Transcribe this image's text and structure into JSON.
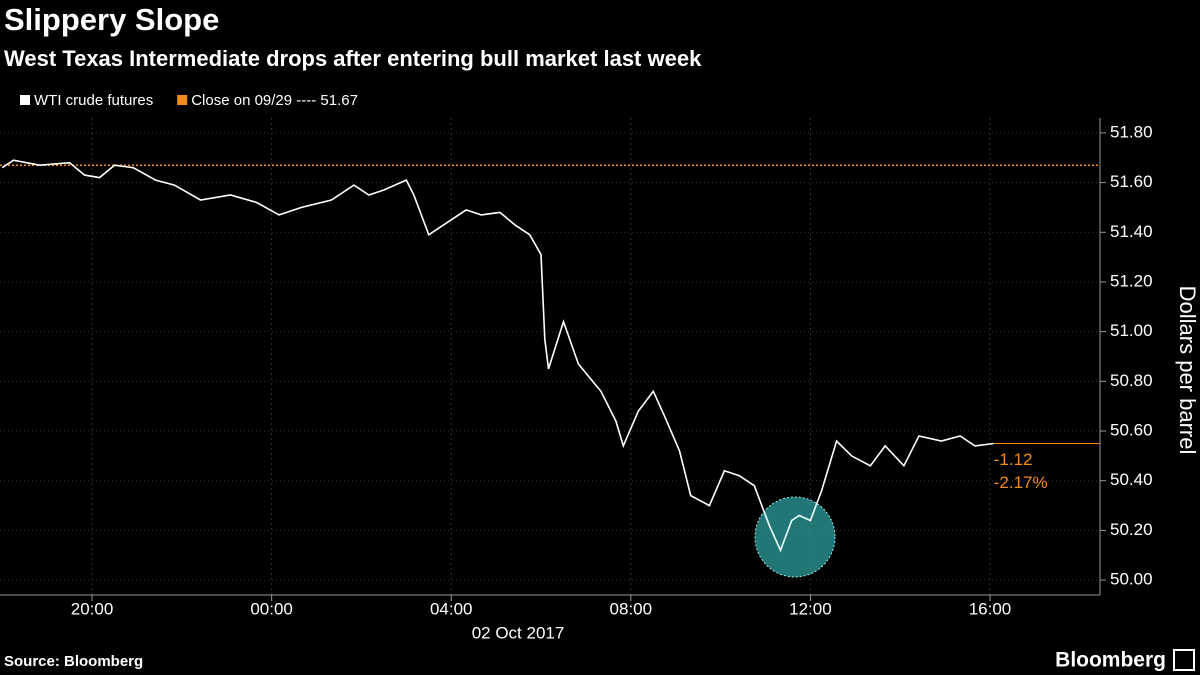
{
  "chart_data": {
    "type": "line",
    "title": "Slippery Slope",
    "subtitle": "West Texas Intermediate drops after entering bull market last week",
    "y_label": "Dollars per barrel",
    "x_label": "02 Oct 2017",
    "source": "Source: Bloomberg",
    "brand": "Bloomberg",
    "series": [
      {
        "name": "WTI crude futures",
        "color": "#ffffff",
        "x": [
          "2017-10-01T18:00",
          "2017-10-01T18:15",
          "2017-10-01T18:50",
          "2017-10-01T19:30",
          "2017-10-01T19:50",
          "2017-10-01T20:10",
          "2017-10-01T20:30",
          "2017-10-01T20:55",
          "2017-10-01T21:25",
          "2017-10-01T21:50",
          "2017-10-01T22:25",
          "2017-10-01T23:05",
          "2017-10-01T23:40",
          "2017-10-02T00:10",
          "2017-10-02T00:40",
          "2017-10-02T01:20",
          "2017-10-02T01:50",
          "2017-10-02T02:10",
          "2017-10-02T02:30",
          "2017-10-02T03:00",
          "2017-10-02T03:10",
          "2017-10-02T03:30",
          "2017-10-02T03:50",
          "2017-10-02T04:20",
          "2017-10-02T04:40",
          "2017-10-02T05:05",
          "2017-10-02T05:25",
          "2017-10-02T05:45",
          "2017-10-02T06:00",
          "2017-10-02T06:05",
          "2017-10-02T06:10",
          "2017-10-02T06:30",
          "2017-10-02T06:50",
          "2017-10-02T07:20",
          "2017-10-02T07:40",
          "2017-10-02T07:50",
          "2017-10-02T08:10",
          "2017-10-02T08:30",
          "2017-10-02T08:45",
          "2017-10-02T09:05",
          "2017-10-02T09:20",
          "2017-10-02T09:45",
          "2017-10-02T10:05",
          "2017-10-02T10:25",
          "2017-10-02T10:45",
          "2017-10-02T11:05",
          "2017-10-02T11:20",
          "2017-10-02T11:35",
          "2017-10-02T11:45",
          "2017-10-02T12:00",
          "2017-10-02T12:15",
          "2017-10-02T12:35",
          "2017-10-02T12:55",
          "2017-10-02T13:20",
          "2017-10-02T13:40",
          "2017-10-02T14:05",
          "2017-10-02T14:25",
          "2017-10-02T14:55",
          "2017-10-02T15:20",
          "2017-10-02T15:40",
          "2017-10-02T16:05"
        ],
        "values": [
          51.66,
          51.69,
          51.67,
          51.68,
          51.63,
          51.62,
          51.67,
          51.66,
          51.61,
          51.59,
          51.53,
          51.55,
          51.52,
          51.47,
          51.5,
          51.53,
          51.59,
          51.55,
          51.57,
          51.61,
          51.55,
          51.39,
          51.43,
          51.49,
          51.47,
          51.48,
          51.43,
          51.39,
          51.31,
          50.97,
          50.85,
          51.04,
          50.87,
          50.76,
          50.64,
          50.54,
          50.68,
          50.76,
          50.66,
          50.52,
          50.34,
          50.3,
          50.44,
          50.42,
          50.38,
          50.22,
          50.12,
          50.24,
          50.26,
          50.24,
          50.36,
          50.56,
          50.5,
          50.46,
          50.54,
          50.46,
          50.58,
          50.56,
          50.58,
          50.54,
          50.55
        ]
      }
    ],
    "reference_line": {
      "name": "Close on 09/29 ---- 51.67",
      "value": 51.67,
      "color": "#f28c1e"
    },
    "change": {
      "value": -1.12
    },
    "change_pct": {
      "value": -2.17,
      "label": "-2.17%"
    },
    "xlim": [
      "2017-10-01T17:57",
      "2017-10-02T18:27"
    ],
    "xticks": [
      {
        "value": "2017-10-01T20:00",
        "label": "20:00"
      },
      {
        "value": "2017-10-02T00:00",
        "label": "00:00"
      },
      {
        "value": "2017-10-02T04:00",
        "label": "04:00"
      },
      {
        "value": "2017-10-02T08:00",
        "label": "08:00"
      },
      {
        "value": "2017-10-02T12:00",
        "label": "12:00"
      },
      {
        "value": "2017-10-02T16:00",
        "label": "16:00"
      }
    ],
    "ylim": [
      49.94,
      51.86
    ],
    "yticks": [
      {
        "value": 50.0,
        "label": "50.00"
      },
      {
        "value": 50.2,
        "label": "50.20"
      },
      {
        "value": 50.4,
        "label": "50.40"
      },
      {
        "value": 50.6,
        "label": "50.60"
      },
      {
        "value": 50.8,
        "label": "50.80"
      },
      {
        "value": 51.0,
        "label": "51.00"
      },
      {
        "value": 51.2,
        "label": "51.20"
      },
      {
        "value": 51.4,
        "label": "51.40"
      },
      {
        "value": 51.6,
        "label": "51.60"
      },
      {
        "value": 51.8,
        "label": "51.80"
      }
    ],
    "y_axis_side": "right",
    "grid": true
  }
}
